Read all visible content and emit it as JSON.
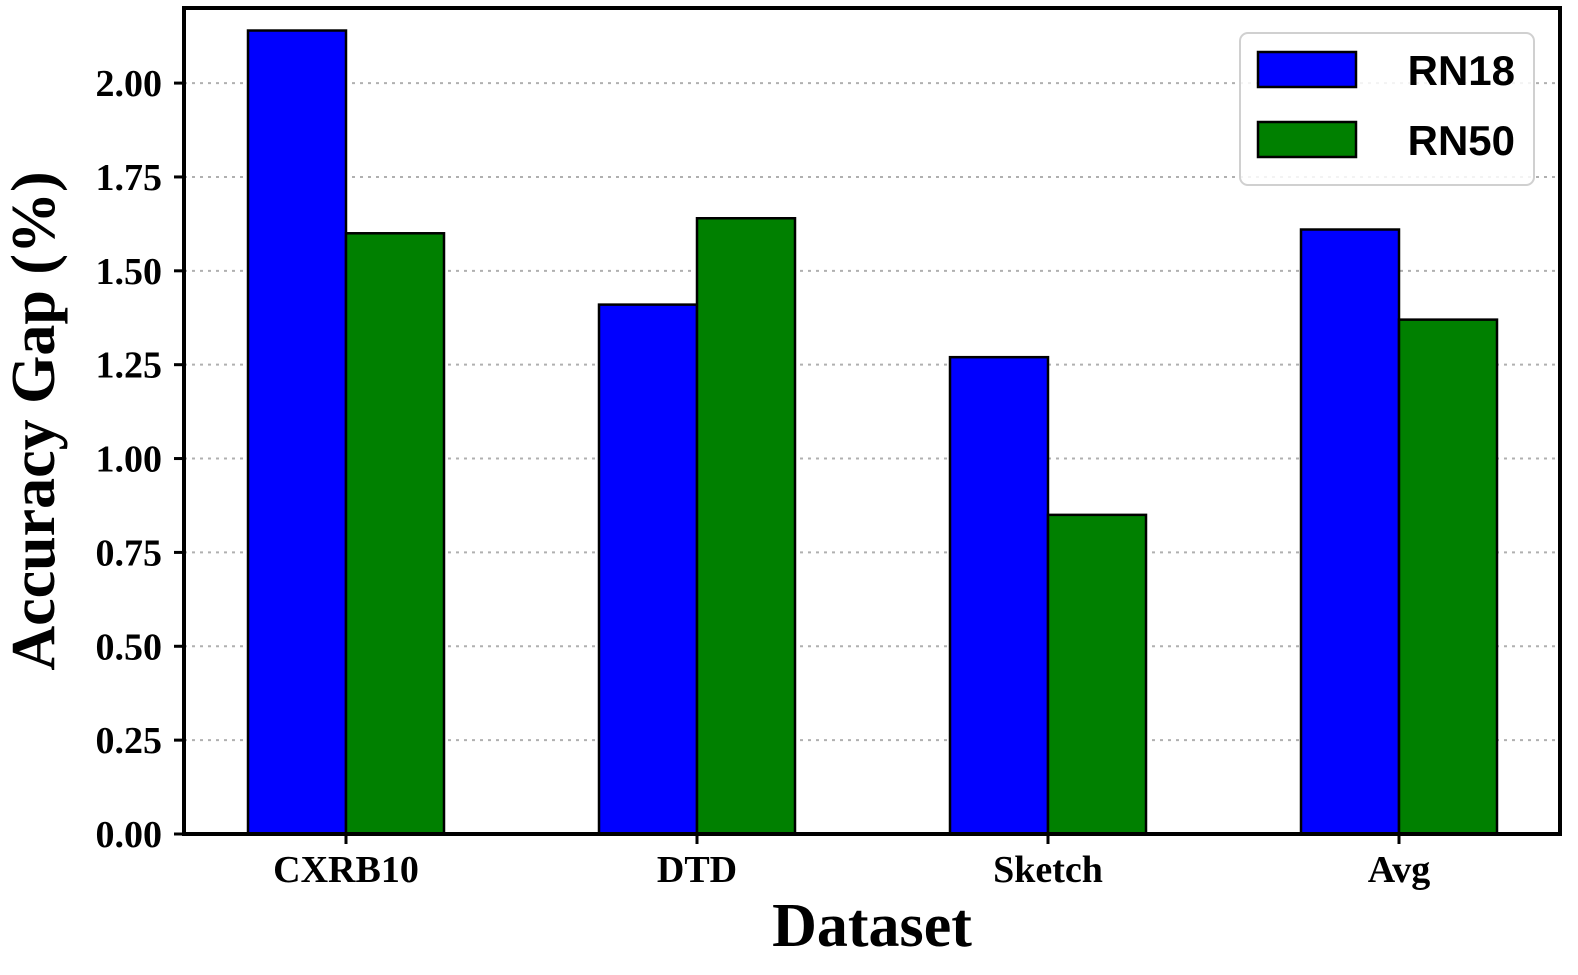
{
  "chart_data": {
    "type": "bar",
    "title": "",
    "xlabel": "Dataset",
    "ylabel": "Accuracy Gap (%)",
    "categories": [
      "CXRB10",
      "DTD",
      "Sketch",
      "Avg"
    ],
    "series": [
      {
        "name": "RN18",
        "color": "#0000ff",
        "values": [
          2.14,
          1.41,
          1.27,
          1.61
        ]
      },
      {
        "name": "RN50",
        "color": "#008000",
        "values": [
          1.6,
          1.64,
          0.85,
          1.37
        ]
      }
    ],
    "ylim": [
      0,
      2.2
    ],
    "yticks": [
      "0.00",
      "0.25",
      "0.50",
      "0.75",
      "1.00",
      "1.25",
      "1.50",
      "1.75",
      "2.00"
    ],
    "grid": "horizontal-dotted",
    "legend_position": "top-right"
  }
}
